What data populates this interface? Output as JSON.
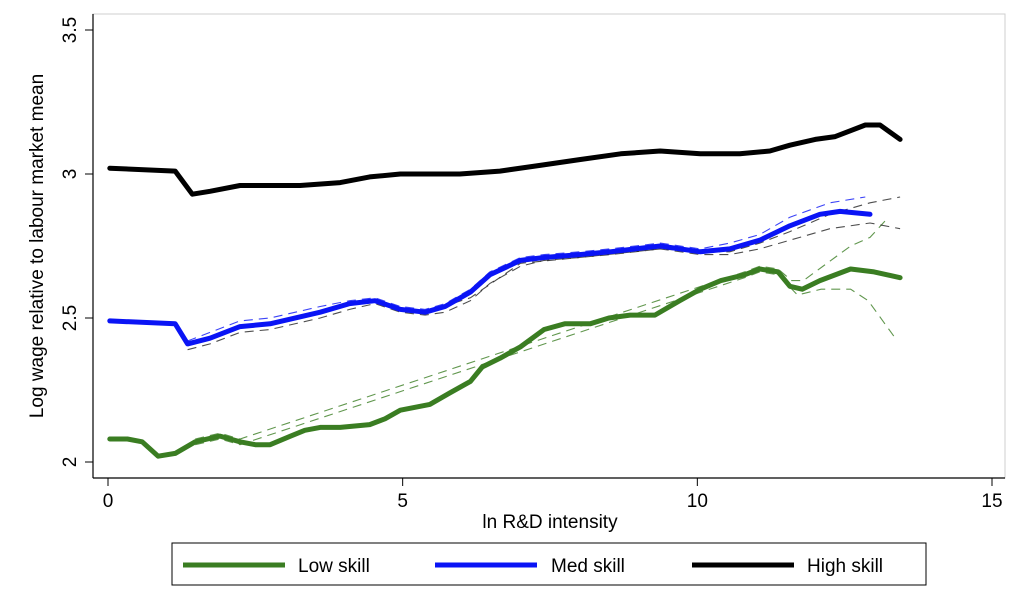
{
  "chart_data": {
    "type": "line",
    "title": "",
    "xlabel": "ln R&D intensity",
    "ylabel": "Log wage relative to labour market mean",
    "xlim": [
      0,
      15
    ],
    "ylim": [
      2,
      3.5
    ],
    "xticks": [
      "0",
      "5",
      "10",
      "15"
    ],
    "yticks": [
      "2",
      "2.5",
      "3",
      "3.5"
    ],
    "grid": false,
    "legend_position": "bottom",
    "series": [
      {
        "name": "Low skill",
        "color": "#3a7d22",
        "x": [
          0.03,
          0.33,
          0.58,
          0.85,
          1.14,
          1.48,
          1.9,
          2.24,
          2.5,
          2.75,
          3.1,
          3.34,
          3.6,
          3.94,
          4.44,
          4.7,
          4.96,
          5.46,
          5.8,
          6.15,
          6.35,
          6.65,
          7.0,
          7.4,
          7.75,
          8.18,
          8.5,
          8.86,
          9.28,
          9.7,
          10.05,
          10.4,
          10.8,
          11.06,
          11.37,
          11.57,
          11.78,
          12.08,
          12.6,
          13.0,
          13.44
        ],
        "y": [
          2.08,
          2.08,
          2.07,
          2.02,
          2.03,
          2.07,
          2.09,
          2.07,
          2.06,
          2.06,
          2.09,
          2.11,
          2.12,
          2.12,
          2.13,
          2.15,
          2.18,
          2.2,
          2.24,
          2.28,
          2.33,
          2.36,
          2.4,
          2.46,
          2.48,
          2.48,
          2.5,
          2.51,
          2.51,
          2.56,
          2.6,
          2.63,
          2.65,
          2.67,
          2.66,
          2.61,
          2.6,
          2.63,
          2.67,
          2.66,
          2.64
        ],
        "ci_upper": {
          "x": [
            1.48,
            1.9,
            2.24,
            10.8,
            11.06,
            11.37,
            11.6,
            11.8,
            12.2,
            12.6,
            12.93,
            13.2
          ],
          "y": [
            2.08,
            2.1,
            2.08,
            2.66,
            2.68,
            2.67,
            2.63,
            2.63,
            2.69,
            2.75,
            2.78,
            2.84
          ]
        },
        "ci_lower": {
          "x": [
            1.48,
            1.9,
            2.24,
            10.8,
            11.06,
            11.37,
            11.7,
            12.1,
            12.6,
            12.9,
            13.36
          ],
          "y": [
            2.06,
            2.08,
            2.06,
            2.64,
            2.66,
            2.65,
            2.58,
            2.6,
            2.6,
            2.56,
            2.43
          ]
        }
      },
      {
        "name": "Med skill",
        "color": "#0a14f5",
        "x": [
          0.03,
          1.14,
          1.35,
          1.73,
          2.24,
          2.75,
          3.6,
          4.1,
          4.53,
          4.96,
          5.38,
          5.72,
          6.15,
          6.48,
          7.0,
          7.4,
          8.0,
          8.52,
          9.37,
          10.05,
          10.55,
          11.06,
          11.57,
          12.08,
          12.42,
          12.93
        ],
        "y": [
          2.49,
          2.48,
          2.41,
          2.43,
          2.47,
          2.48,
          2.52,
          2.55,
          2.56,
          2.53,
          2.52,
          2.54,
          2.59,
          2.65,
          2.7,
          2.71,
          2.72,
          2.73,
          2.75,
          2.73,
          2.74,
          2.77,
          2.82,
          2.86,
          2.87,
          2.86
        ],
        "ci_upper": {
          "x": [
            1.35,
            1.73,
            2.24,
            2.75,
            3.6,
            4.1,
            4.53,
            4.96,
            5.38,
            5.72,
            6.15,
            6.48,
            7.0,
            7.4,
            8.0,
            8.52,
            9.37,
            10.05,
            10.55,
            11.06,
            11.57,
            12.25,
            12.85
          ],
          "y": [
            2.42,
            2.45,
            2.49,
            2.5,
            2.54,
            2.56,
            2.57,
            2.54,
            2.53,
            2.55,
            2.6,
            2.66,
            2.71,
            2.72,
            2.73,
            2.74,
            2.76,
            2.74,
            2.76,
            2.79,
            2.85,
            2.9,
            2.92
          ]
        },
        "ci_lower": {
          "x": [
            1.35,
            1.73,
            2.24,
            2.75,
            3.6,
            4.1,
            4.53,
            4.96,
            5.38,
            5.72,
            6.15,
            6.48,
            7.0,
            7.4,
            8.0,
            8.52,
            9.37,
            10.05,
            10.55,
            11.06,
            11.57,
            12.25,
            12.93,
            13.44
          ],
          "y": [
            2.39,
            2.41,
            2.45,
            2.46,
            2.5,
            2.53,
            2.55,
            2.52,
            2.51,
            2.52,
            2.56,
            2.62,
            2.68,
            2.7,
            2.71,
            2.72,
            2.74,
            2.72,
            2.72,
            2.74,
            2.77,
            2.81,
            2.83,
            2.81
          ]
        },
        "ci_upper_alt": {
          "x": [
            5.38,
            6.15,
            7.0,
            8.0,
            9.37,
            10.05,
            10.55,
            11.06,
            11.57,
            12.25,
            12.93,
            13.44
          ],
          "y": [
            2.52,
            2.57,
            2.69,
            2.71,
            2.74,
            2.73,
            2.73,
            2.76,
            2.8,
            2.86,
            2.9,
            2.92
          ]
        }
      },
      {
        "name": "High skill",
        "color": "#000000",
        "x": [
          0.03,
          1.14,
          1.43,
          1.73,
          2.24,
          3.26,
          3.94,
          4.44,
          4.96,
          5.97,
          6.65,
          7.33,
          8.0,
          8.7,
          9.37,
          10.05,
          10.72,
          11.23,
          11.57,
          12.0,
          12.34,
          12.85,
          13.1,
          13.44
        ],
        "y": [
          3.02,
          3.01,
          2.93,
          2.94,
          2.96,
          2.96,
          2.97,
          2.99,
          3.0,
          3.0,
          3.01,
          3.03,
          3.05,
          3.07,
          3.08,
          3.07,
          3.07,
          3.08,
          3.1,
          3.12,
          3.13,
          3.17,
          3.17,
          3.12
        ]
      }
    ]
  }
}
